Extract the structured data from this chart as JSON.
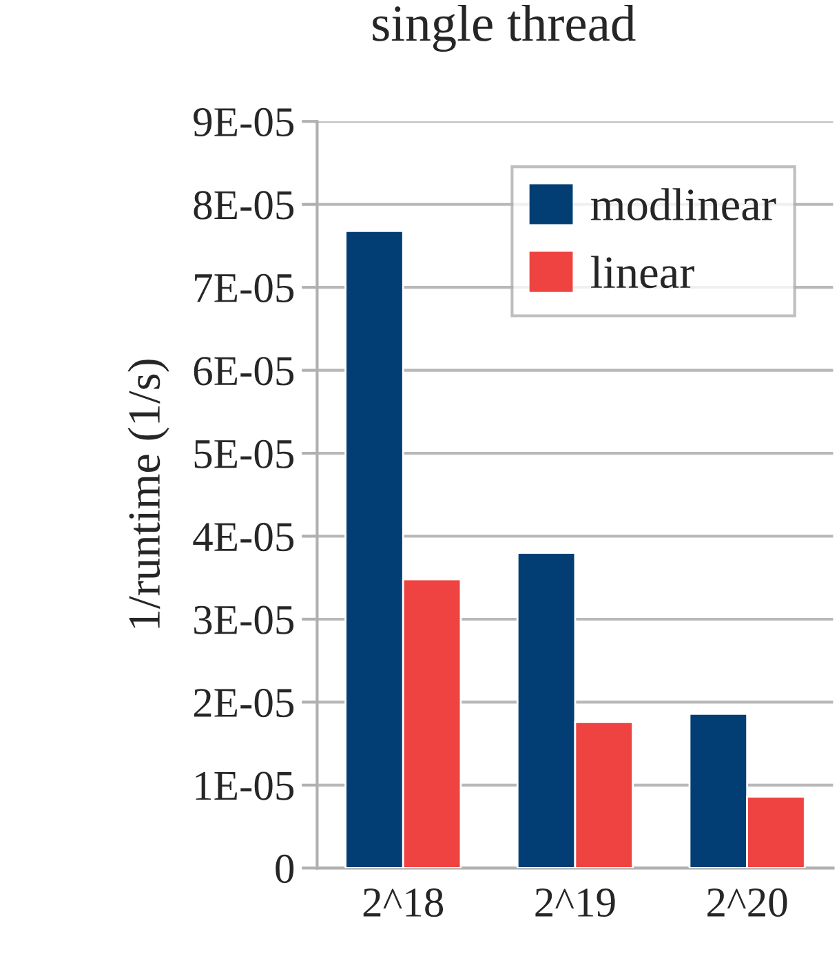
{
  "chart_data": {
    "type": "bar",
    "title": "single thread",
    "ylabel": "1/runtime (1/s)",
    "categories": [
      "2^18",
      "2^19",
      "2^20"
    ],
    "series": [
      {
        "name": "modlinear",
        "color": "#023e74",
        "values": [
          7.68e-05,
          3.8e-05,
          1.86e-05
        ]
      },
      {
        "name": "linear",
        "color": "#ee4340",
        "values": [
          3.48e-05,
          1.76e-05,
          8.6e-06
        ]
      }
    ],
    "ylim": [
      0,
      9e-05
    ],
    "yticks": [
      {
        "value": 0,
        "label": "0"
      },
      {
        "value": 1e-05,
        "label": "1E-05"
      },
      {
        "value": 2e-05,
        "label": "2E-05"
      },
      {
        "value": 3e-05,
        "label": "3E-05"
      },
      {
        "value": 4e-05,
        "label": "4E-05"
      },
      {
        "value": 5e-05,
        "label": "5E-05"
      },
      {
        "value": 6e-05,
        "label": "6E-05"
      },
      {
        "value": 7e-05,
        "label": "7E-05"
      },
      {
        "value": 8e-05,
        "label": "8E-05"
      },
      {
        "value": 9e-05,
        "label": "9E-05"
      }
    ],
    "grid": "y",
    "legend": "top right"
  }
}
